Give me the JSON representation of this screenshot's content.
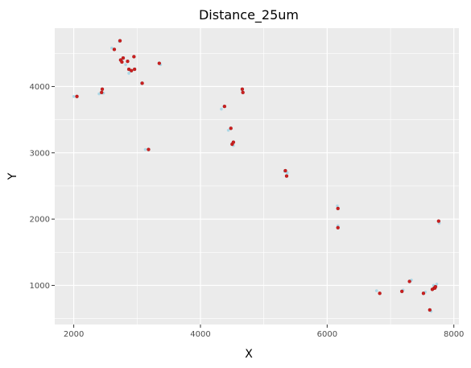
{
  "chart_data": {
    "type": "scatter",
    "title": "Distance_25um",
    "xlabel": "X",
    "ylabel": "Y",
    "xlim": [
      1700,
      8080
    ],
    "ylim": [
      410,
      4880
    ],
    "xticks": [
      2000,
      4000,
      6000,
      8000
    ],
    "yticks": [
      1000,
      2000,
      3000,
      4000
    ],
    "grid": true,
    "background": "#ebebeb",
    "grid_color": "#ffffff",
    "series": [
      {
        "color": "#add8e6",
        "x": [
          2000,
          2050,
          2400,
          2470,
          2600,
          2720,
          2760,
          2820,
          2870,
          2900,
          2950,
          3070,
          3130,
          3370,
          4330,
          4370,
          4440,
          4500,
          4660,
          4520,
          5330,
          5370,
          6160,
          6170,
          6780,
          7200,
          7330,
          7550,
          7640,
          7680,
          7730,
          7770
        ],
        "y": [
          3850,
          3850,
          3890,
          3900,
          4580,
          4680,
          4400,
          4330,
          4200,
          4230,
          4450,
          4050,
          3050,
          4330,
          3660,
          3700,
          3340,
          3140,
          3950,
          3110,
          2720,
          2700,
          2200,
          1900,
          920,
          930,
          1080,
          900,
          610,
          1000,
          1020,
          1940
        ]
      },
      {
        "color": "#cc1f1f",
        "x": [
          2050,
          2440,
          2450,
          2640,
          2730,
          2740,
          2760,
          2780,
          2850,
          2870,
          2910,
          2950,
          2960,
          3080,
          3180,
          3350,
          4380,
          4480,
          4500,
          4520,
          4660,
          4670,
          5340,
          5360,
          6170,
          6170,
          6830,
          7180,
          7300,
          7520,
          7620,
          7660,
          7690,
          7700,
          7710,
          7760
        ],
        "y": [
          3850,
          3910,
          3960,
          4560,
          4690,
          4400,
          4370,
          4430,
          4380,
          4260,
          4240,
          4450,
          4260,
          4050,
          3050,
          4350,
          3700,
          3370,
          3130,
          3160,
          3960,
          3910,
          2730,
          2650,
          2160,
          1870,
          880,
          910,
          1060,
          880,
          630,
          940,
          960,
          960,
          980,
          1970
        ]
      }
    ]
  }
}
